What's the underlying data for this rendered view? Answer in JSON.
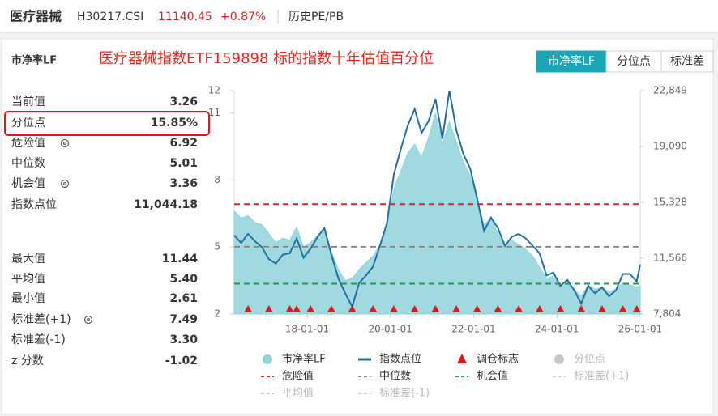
{
  "header": {
    "name": "医疗器械",
    "code": "H30217.CSI",
    "price": "11140.45",
    "change": "+0.87%",
    "tab": "历史PE/PB"
  },
  "panel": {
    "metric": "市净率LF",
    "rows": [
      [
        "当前值",
        "3.26"
      ],
      [
        "分位点",
        "15.85%"
      ],
      [
        "危险值",
        "6.92"
      ],
      [
        "中位数",
        "5.01"
      ],
      [
        "机会值",
        "3.36"
      ],
      [
        "指数点位",
        "11,044.18"
      ],
      [
        "最大值",
        "11.44"
      ],
      [
        "平均值",
        "5.40"
      ],
      [
        "最小值",
        "2.61"
      ],
      [
        "标准差(+1)",
        "7.49"
      ],
      [
        "标准差(-1)",
        "3.30"
      ],
      [
        "z 分数",
        "-1.02"
      ]
    ],
    "buttons": [
      "市净率LF",
      "分位点",
      "标准差"
    ]
  },
  "chart_data": {
    "type": "area-line",
    "title": "医疗器械指数ETF159898 标的指数十年估值百分位",
    "x": [
      "16-04-01",
      "16-06-01",
      "16-08-01",
      "16-10-01",
      "16-12-01",
      "17-02-01",
      "17-04-01",
      "17-06-01",
      "17-08-01",
      "17-10-01",
      "17-12-01",
      "18-02-01",
      "18-04-01",
      "18-06-01",
      "18-08-01",
      "18-10-01",
      "18-12-01",
      "19-02-01",
      "19-04-01",
      "19-06-01",
      "19-08-01",
      "19-10-01",
      "19-12-01",
      "20-02-01",
      "20-04-01",
      "20-06-01",
      "20-08-01",
      "20-10-01",
      "20-12-01",
      "21-02-01",
      "21-04-01",
      "21-06-01",
      "21-08-01",
      "21-10-01",
      "21-12-01",
      "22-02-01",
      "22-04-01",
      "22-06-01",
      "22-08-01",
      "22-10-01",
      "22-12-01",
      "23-02-01",
      "23-04-01",
      "23-06-01",
      "23-08-01",
      "23-10-01",
      "23-12-01",
      "24-02-01",
      "24-04-01",
      "24-06-01",
      "24-08-01",
      "24-10-01",
      "24-12-01",
      "25-02-01",
      "25-04-01",
      "25-06-01",
      "25-08-01",
      "25-10-01",
      "25-12-01",
      "26-01-01"
    ],
    "series": [
      {
        "name": "市净率LF",
        "color": "#8fd3db",
        "values": [
          6.6,
          6.3,
          6.4,
          6.1,
          6.0,
          5.6,
          5.2,
          5.4,
          5.3,
          5.9,
          5.0,
          5.2,
          5.5,
          5.8,
          4.8,
          4.0,
          3.5,
          3.6,
          4.0,
          4.3,
          4.6,
          5.1,
          5.8,
          7.6,
          8.4,
          9.2,
          9.6,
          9.0,
          9.9,
          11.0,
          9.6,
          10.6,
          9.7,
          8.8,
          8.2,
          7.1,
          6.0,
          6.3,
          5.6,
          5.0,
          5.3,
          5.1,
          4.9,
          4.6,
          4.1,
          3.6,
          3.7,
          3.2,
          3.4,
          3.1,
          2.8,
          3.3,
          3.1,
          3.2,
          3.0,
          3.1,
          3.4,
          3.3,
          3.2,
          3.26
        ]
      },
      {
        "name": "指数点位",
        "color": "#23709f",
        "axis": "y2",
        "values": [
          13100,
          12600,
          13200,
          12700,
          12300,
          11500,
          11200,
          11800,
          11900,
          12900,
          11600,
          12200,
          13000,
          13600,
          11800,
          10200,
          9200,
          8300,
          9900,
          10400,
          11000,
          12400,
          13900,
          17200,
          18900,
          20500,
          21600,
          20000,
          20800,
          22300,
          19600,
          22849,
          20200,
          18600,
          17600,
          15600,
          13400,
          14300,
          13600,
          12400,
          13000,
          13200,
          12900,
          12400,
          11900,
          10400,
          10600,
          9700,
          10100,
          9400,
          8500,
          9700,
          9200,
          9600,
          9000,
          9400,
          10500,
          10500,
          10000,
          11140
        ]
      }
    ],
    "markers": {
      "name": "调仓标志",
      "color": "#e8141a",
      "x": [
        "16-08-01",
        "17-02-01",
        "17-08-01",
        "17-10-01",
        "18-02-01",
        "18-08-01",
        "19-02-01",
        "19-08-01",
        "20-02-01",
        "20-08-01",
        "21-02-01",
        "21-08-01",
        "22-02-01",
        "22-08-01",
        "23-02-01",
        "23-08-01",
        "24-02-01",
        "24-08-01",
        "25-02-01",
        "25-08-01",
        "25-12-01"
      ]
    },
    "hidden_series": [
      {
        "name": "分位点",
        "color": "#c8c8c8"
      }
    ],
    "reference_lines": [
      {
        "name": "危险值",
        "color": "#d42a2a",
        "value": 6.92,
        "active": true
      },
      {
        "name": "中位数",
        "color": "#888888",
        "value": 5.01,
        "active": true
      },
      {
        "name": "机会值",
        "color": "#1f9a4a",
        "value": 3.36,
        "active": true
      },
      {
        "name": "标准差(+1)",
        "color": "#cfcfcf",
        "active": false
      },
      {
        "name": "平均值",
        "color": "#cfcfcf",
        "active": false
      },
      {
        "name": "标准差(-1)",
        "color": "#cfcfcf",
        "active": false
      }
    ],
    "xlim": [
      "16-04-01",
      "26-01-01"
    ],
    "xticks": [
      "18-01-01",
      "20-01-01",
      "22-01-01",
      "24-01-01",
      "26-01-01"
    ],
    "ylim": [
      2,
      12
    ],
    "yticks": [
      2,
      5,
      8,
      11,
      12
    ],
    "y2lim": [
      7804,
      22849
    ],
    "y2ticks": [
      {
        "value": 7804,
        "label": "7,804"
      },
      {
        "value": 11566,
        "label": "11,566"
      },
      {
        "value": 15328,
        "label": "15,328"
      },
      {
        "value": 19090,
        "label": "19,090"
      },
      {
        "value": 22849,
        "label": "22,849"
      }
    ],
    "grid": false
  }
}
